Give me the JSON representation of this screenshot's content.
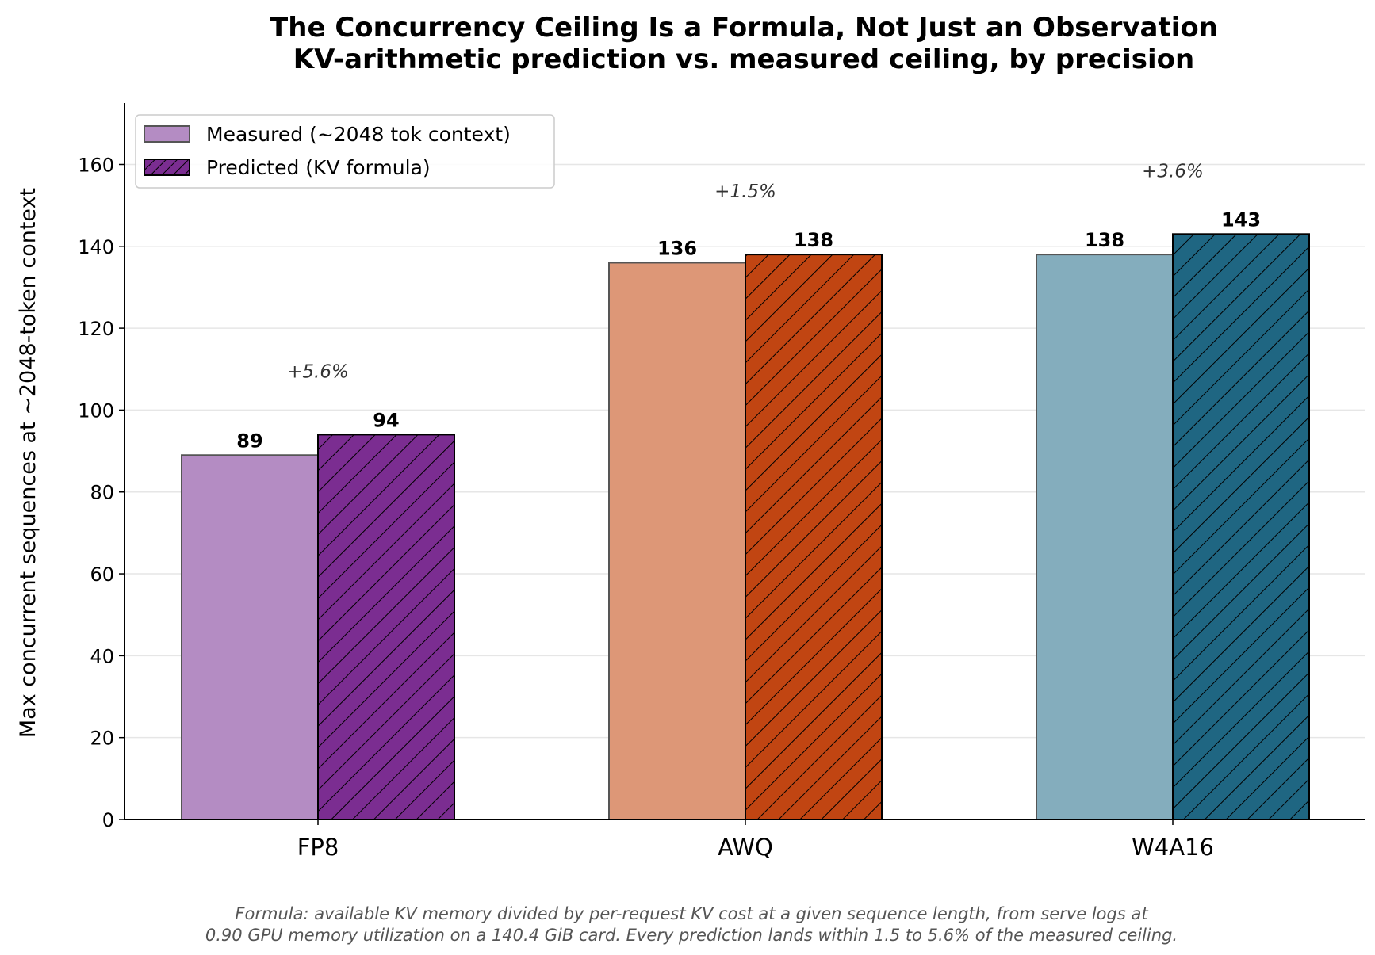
{
  "chart_data": {
    "type": "bar",
    "title": "The Concurrency Ceiling Is a Formula, Not Just an Observation",
    "subtitle": "KV-arithmetic prediction vs. measured ceiling, by precision",
    "xlabel": "",
    "ylabel": "Max concurrent sequences at ~2048-token context",
    "ylim": [
      0,
      175
    ],
    "yticks": [
      0,
      20,
      40,
      60,
      80,
      100,
      120,
      140,
      160
    ],
    "grid": "horizontal",
    "legend_position": "upper-left",
    "categories": [
      "FP8",
      "AWQ",
      "W4A16"
    ],
    "series": [
      {
        "name": "Measured (~2048 tok context)",
        "values": [
          89,
          136,
          138
        ],
        "colors": [
          "#b48cc3",
          "#dd9777",
          "#84adbd"
        ],
        "hatch": false
      },
      {
        "name": "Predicted (KV formula)",
        "values": [
          94,
          138,
          143
        ],
        "colors": [
          "#7b2d91",
          "#c14512",
          "#1f6682"
        ],
        "hatch": true
      }
    ],
    "value_labels": [
      [
        "89",
        "136",
        "138"
      ],
      [
        "94",
        "138",
        "143"
      ]
    ],
    "annotations": [
      "+5.6%",
      "+1.5%",
      "+3.6%"
    ],
    "footnote": [
      "Formula: available KV memory divided by per-request KV cost at a given sequence length, from serve logs at",
      "0.90 GPU memory utilization on a 140.4 GiB card. Every prediction lands within 1.5 to 5.6% of the measured ceiling."
    ]
  }
}
